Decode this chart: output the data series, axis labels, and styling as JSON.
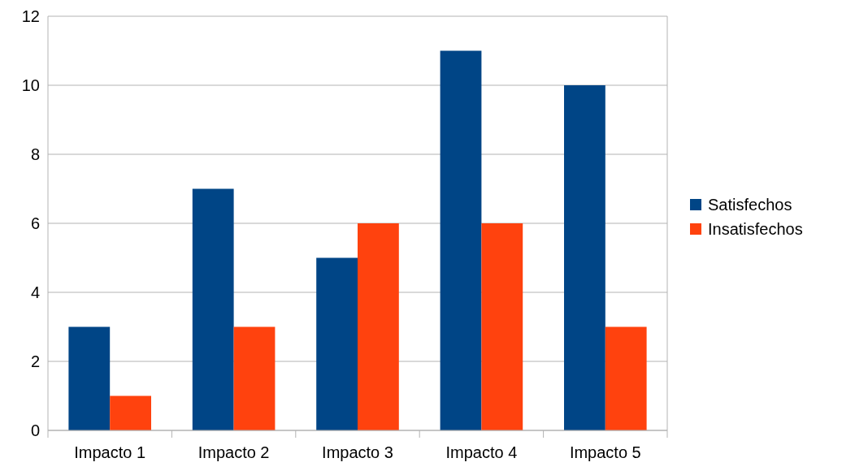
{
  "chart_data": {
    "type": "bar",
    "categories": [
      "Impacto 1",
      "Impacto 2",
      "Impacto 3",
      "Impacto 4",
      "Impacto 5"
    ],
    "series": [
      {
        "name": "Satisfechos",
        "color": "#004586",
        "values": [
          3,
          7,
          5,
          11,
          10
        ]
      },
      {
        "name": "Insatisfechos",
        "color": "#ff420e",
        "values": [
          1,
          3,
          6,
          6,
          3
        ]
      }
    ],
    "ylim": [
      0,
      12
    ],
    "yticks": [
      0,
      2,
      4,
      6,
      8,
      10,
      12
    ],
    "grid": "y",
    "legend": "right"
  }
}
